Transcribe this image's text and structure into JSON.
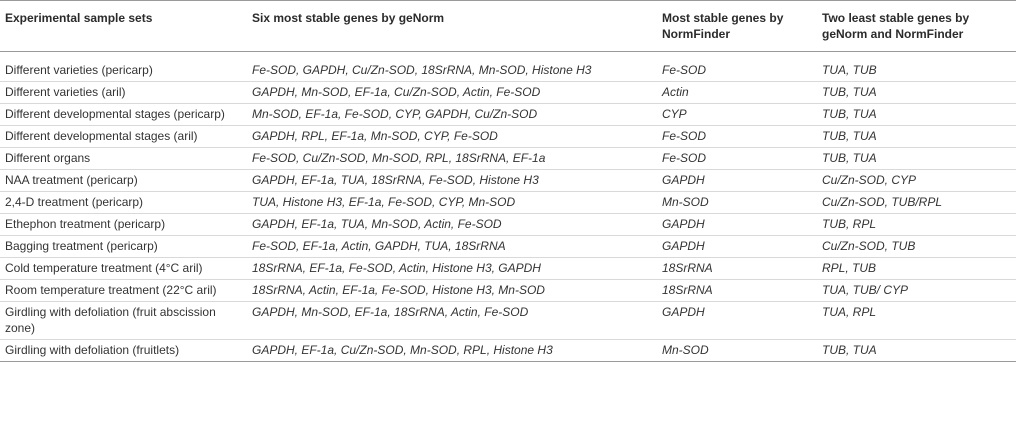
{
  "headers": [
    "Experimental sample sets",
    "Six most stable genes by geNorm",
    "Most stable genes by NormFinder",
    "Two least stable genes by geNorm and NormFinder"
  ],
  "rows": [
    [
      "Different varieties (pericarp)",
      "Fe-SOD, GAPDH, Cu/Zn-SOD, 18SrRNA, Mn-SOD, Histone H3",
      "Fe-SOD",
      "TUA, TUB"
    ],
    [
      "Different varieties (aril)",
      "GAPDH, Mn-SOD, EF-1a, Cu/Zn-SOD, Actin, Fe-SOD",
      "Actin",
      "TUB, TUA"
    ],
    [
      "Different developmental stages (pericarp)",
      "Mn-SOD, EF-1a, Fe-SOD, CYP, GAPDH, Cu/Zn-SOD",
      "CYP",
      "TUB, TUA"
    ],
    [
      "Different developmental stages (aril)",
      "GAPDH, RPL, EF-1a, Mn-SOD, CYP, Fe-SOD",
      "Fe-SOD",
      "TUB, TUA"
    ],
    [
      "Different organs",
      "Fe-SOD, Cu/Zn-SOD, Mn-SOD, RPL, 18SrRNA, EF-1a",
      "Fe-SOD",
      "TUB, TUA"
    ],
    [
      "NAA treatment (pericarp)",
      "GAPDH, EF-1a, TUA, 18SrRNA, Fe-SOD, Histone H3",
      "GAPDH",
      "Cu/Zn-SOD, CYP"
    ],
    [
      "2,4-D treatment (pericarp)",
      "TUA, Histone H3, EF-1a, Fe-SOD, CYP, Mn-SOD",
      "Mn-SOD",
      "Cu/Zn-SOD, TUB/RPL"
    ],
    [
      "Ethephon treatment (pericarp)",
      "GAPDH, EF-1a, TUA, Mn-SOD, Actin, Fe-SOD",
      "GAPDH",
      "TUB, RPL"
    ],
    [
      "Bagging treatment (pericarp)",
      "Fe-SOD, EF-1a, Actin, GAPDH, TUA, 18SrRNA",
      "GAPDH",
      "Cu/Zn-SOD, TUB"
    ],
    [
      "Cold temperature treatment (4°C aril)",
      "18SrRNA, EF-1a, Fe-SOD, Actin, Histone H3, GAPDH",
      "18SrRNA",
      "RPL, TUB"
    ],
    [
      "Room temperature treatment (22°C aril)",
      "18SrRNA, Actin, EF-1a, Fe-SOD, Histone H3, Mn-SOD",
      "18SrRNA",
      "TUA, TUB/ CYP"
    ],
    [
      "Girdling with defoliation (fruit abscission zone)",
      "GAPDH, Mn-SOD, EF-1a, 18SrRNA, Actin, Fe-SOD",
      "GAPDH",
      "TUA, RPL"
    ],
    [
      "Girdling with defoliation (fruitlets)",
      "GAPDH, EF-1a, Cu/Zn-SOD, Mn-SOD, RPL, Histone H3",
      "Mn-SOD",
      "TUB, TUA"
    ]
  ]
}
